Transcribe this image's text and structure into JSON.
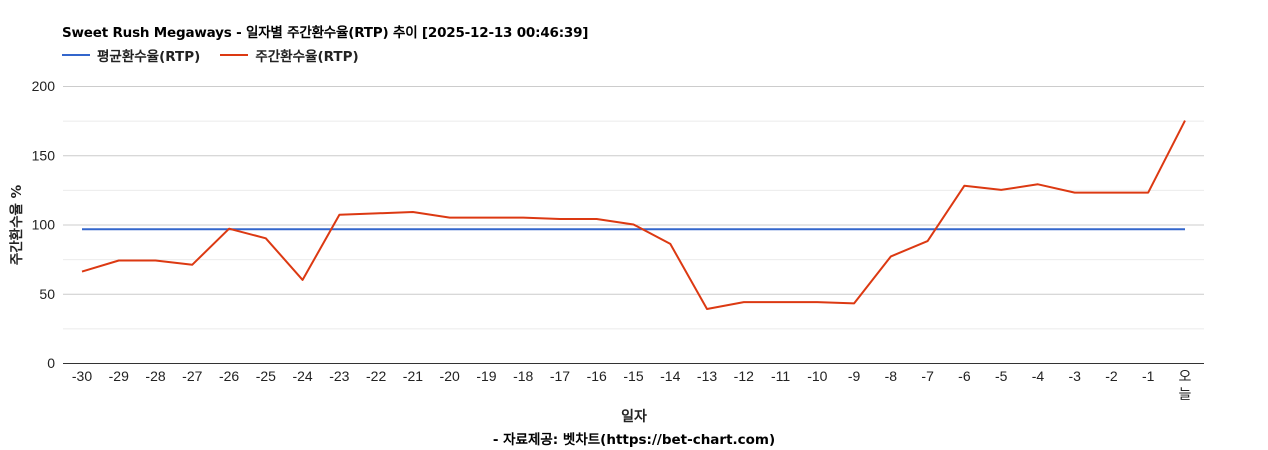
{
  "chart_data": {
    "type": "line",
    "title": "Sweet Rush Megaways - 일자별 주간환수율(RTP) 추이 [2025-12-13 00:46:39]",
    "xlabel": "일자",
    "ylabel": "주간환수율 %",
    "credit": "- 자료제공: 벳차트(https://bet-chart.com)",
    "ylim": [
      0,
      200
    ],
    "yticks": [
      0,
      50,
      100,
      150,
      200
    ],
    "minor_gridlines": [
      25,
      75,
      125,
      175
    ],
    "grid": true,
    "legend_position": "top",
    "categories": [
      "-30",
      "-29",
      "-28",
      "-27",
      "-26",
      "-25",
      "-24",
      "-23",
      "-22",
      "-21",
      "-20",
      "-19",
      "-18",
      "-17",
      "-16",
      "-15",
      "-14",
      "-13",
      "-12",
      "-11",
      "-10",
      "-9",
      "-8",
      "-7",
      "-6",
      "-5",
      "-4",
      "-3",
      "-2",
      "-1",
      "오늘"
    ],
    "series": [
      {
        "name": "평균환수율(RTP)",
        "color": "#3366cc",
        "values": [
          96.5,
          96.5,
          96.5,
          96.5,
          96.5,
          96.5,
          96.5,
          96.5,
          96.5,
          96.5,
          96.5,
          96.5,
          96.5,
          96.5,
          96.5,
          96.5,
          96.5,
          96.5,
          96.5,
          96.5,
          96.5,
          96.5,
          96.5,
          96.5,
          96.5,
          96.5,
          96.5,
          96.5,
          96.5,
          96.5,
          96.5
        ]
      },
      {
        "name": "주간환수율(RTP)",
        "color": "#dc3912",
        "values": [
          66,
          74,
          74,
          71,
          97,
          90,
          60,
          107,
          108,
          109,
          105,
          105,
          105,
          104,
          104,
          100,
          86,
          39,
          44,
          44,
          44,
          43,
          77,
          88,
          128,
          125,
          129,
          123,
          123,
          123,
          175
        ]
      }
    ]
  },
  "title": "Sweet Rush Megaways - 일자별 주간환수율(RTP) 추이 [2025-12-13 00:46:39]",
  "legend": [
    {
      "label": "평균환수율(RTP)",
      "color": "#3366cc"
    },
    {
      "label": "주간환수율(RTP)",
      "color": "#dc3912"
    }
  ],
  "axes": {
    "x_title": "일자",
    "y_title": "주간환수율 %"
  },
  "credit": "- 자료제공: 벳차트(https://bet-chart.com)"
}
